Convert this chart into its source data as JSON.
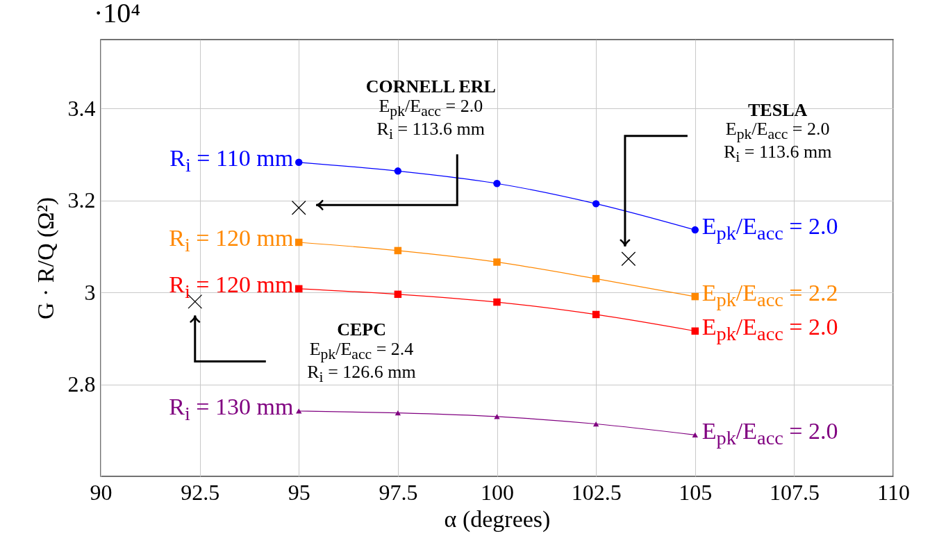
{
  "chart_data": {
    "type": "line",
    "xlabel": "α (degrees)",
    "ylabel": "G · R/Q (Ω²)",
    "xlim": [
      90,
      110
    ],
    "xticks": [
      90,
      92.5,
      95,
      97.5,
      100,
      102.5,
      105,
      107.5,
      110
    ],
    "ylim": [
      2.6,
      3.55
    ],
    "yticks": [
      2.8,
      3,
      3.2,
      3.4
    ],
    "grid": true,
    "x": [
      95,
      97.5,
      100,
      102.5,
      105
    ],
    "series": [
      {
        "name": "R$_{i}$ = 110 mm",
        "color": "#0000ff",
        "marker": "circle",
        "values": [
          3.283,
          3.264,
          3.237,
          3.193,
          3.136
        ]
      },
      {
        "name": "R$_{i}$ = 120 mm",
        "color": "#ff8800",
        "marker": "square",
        "values": [
          3.109,
          3.091,
          3.066,
          3.03,
          2.991
        ]
      },
      {
        "name": "R$_{i}$ = 120 mm",
        "color": "#ff0000",
        "marker": "square",
        "values": [
          3.008,
          2.996,
          2.979,
          2.952,
          2.916
        ]
      },
      {
        "name": "R$_{i}$ = 130 mm",
        "color": "#800080",
        "marker": "triangle",
        "values": [
          2.742,
          2.738,
          2.73,
          2.714,
          2.69
        ]
      },
      {
        "type": "scatter",
        "color": "#000000",
        "marker": "cross",
        "x": [
          95,
          103.32,
          92.38
        ],
        "values": [
          3.184,
          3.073,
          2.98
        ]
      }
    ],
    "annotations": [
      "·10⁴",
      "CORNELL ERL",
      "E$_{pk}$/E$_{acc}$ = 2.0",
      "R$_{i}$ = 113.6 mm",
      "TESLA",
      "E$_{pk}$/E$_{acc}$ = 2.0",
      "R$_{i}$ = 113.6 mm",
      "CEPC",
      "E$_{pk}$/E$_{acc}$ = 2.4",
      "R$_{i}$ = 126.6 mm",
      "E$_{pk}$/E$_{acc}$ = 2.0",
      "E$_{pk}$/E$_{acc}$ = 2.2",
      "E$_{pk}$/E$_{acc}$ = 2.0",
      "E$_{pk}$/E$_{acc}$ = 2.0"
    ]
  }
}
